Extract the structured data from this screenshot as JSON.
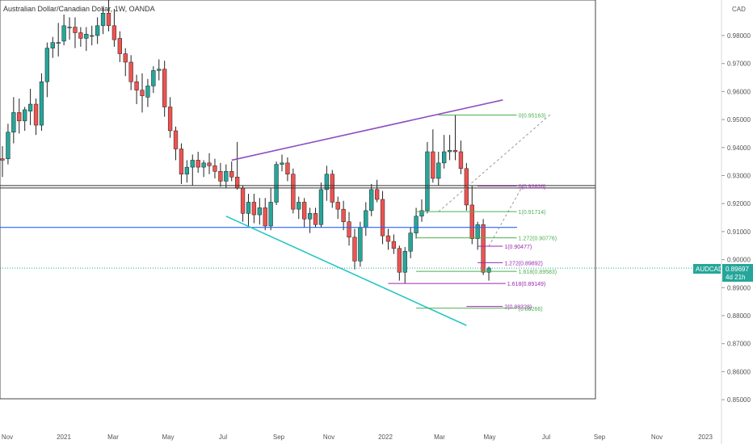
{
  "header": {
    "symbol_title": "Australian Dollar/Canadian Dollar, 1W, OANDA"
  },
  "price_axis": {
    "currency": "CAD",
    "ticks": [
      "0.98000",
      "0.97000",
      "0.96000",
      "0.95000",
      "0.94000",
      "0.93000",
      "0.92000",
      "0.91000",
      "0.90000",
      "0.89000",
      "0.88000",
      "0.87000",
      "0.86000",
      "0.85000"
    ]
  },
  "time_axis": {
    "labels": [
      "Nov",
      "2021",
      "Mar",
      "May",
      "Jul",
      "Sep",
      "Nov",
      "2022",
      "Mar",
      "May",
      "Jul",
      "Sep",
      "Nov",
      "2023"
    ]
  },
  "last_price": {
    "symbol": "AUDCAD",
    "value": "0.89697",
    "countdown": "4d 21h"
  },
  "colors": {
    "up": "#26a69a",
    "down": "#ef5350",
    "trend_upper": "#8e4fc1",
    "trend_lower": "#26c6c6",
    "horizontal": "#2962ff",
    "fib_green": "#4caf50",
    "fib_purple": "#9c27b0",
    "label_bg": "#26a69a"
  },
  "fib_labels": {
    "f1": "0(0.95163)",
    "f2": "0(0.92626)",
    "f3": "1(0.91714)",
    "f4": "1.272(0.90776)",
    "f5": "1(0.90477)",
    "f6": "1.272(0.89892)",
    "f7": "1.618(0.89583)",
    "f8": "1.618(0.89149)",
    "f9": "2(0.88328)",
    "f10": "(0.88266)"
  },
  "chart_data": {
    "type": "candlestick",
    "symbol": "AUDCAD",
    "timeframe": "1W",
    "source": "OANDA",
    "ylim": [
      0.845,
      0.994
    ],
    "candles": [
      {
        "o": 0.936,
        "h": 0.9405,
        "l": 0.9295,
        "c": 0.9355
      },
      {
        "o": 0.936,
        "h": 0.9485,
        "l": 0.934,
        "c": 0.9455
      },
      {
        "o": 0.9455,
        "h": 0.958,
        "l": 0.9415,
        "c": 0.9525
      },
      {
        "o": 0.9525,
        "h": 0.9575,
        "l": 0.945,
        "c": 0.9495
      },
      {
        "o": 0.9495,
        "h": 0.9545,
        "l": 0.946,
        "c": 0.9535
      },
      {
        "o": 0.953,
        "h": 0.961,
        "l": 0.948,
        "c": 0.9555
      },
      {
        "o": 0.9555,
        "h": 0.9575,
        "l": 0.9445,
        "c": 0.948
      },
      {
        "o": 0.948,
        "h": 0.9665,
        "l": 0.946,
        "c": 0.9635
      },
      {
        "o": 0.9635,
        "h": 0.9775,
        "l": 0.958,
        "c": 0.9755
      },
      {
        "o": 0.9755,
        "h": 0.9795,
        "l": 0.972,
        "c": 0.9775
      },
      {
        "o": 0.9775,
        "h": 0.9845,
        "l": 0.9725,
        "c": 0.9775
      },
      {
        "o": 0.978,
        "h": 0.9875,
        "l": 0.9765,
        "c": 0.9835
      },
      {
        "o": 0.983,
        "h": 0.9865,
        "l": 0.9785,
        "c": 0.983
      },
      {
        "o": 0.983,
        "h": 0.9865,
        "l": 0.9755,
        "c": 0.981
      },
      {
        "o": 0.981,
        "h": 0.983,
        "l": 0.976,
        "c": 0.979
      },
      {
        "o": 0.979,
        "h": 0.983,
        "l": 0.9745,
        "c": 0.9805
      },
      {
        "o": 0.98,
        "h": 0.9835,
        "l": 0.9765,
        "c": 0.98
      },
      {
        "o": 0.98,
        "h": 0.9865,
        "l": 0.977,
        "c": 0.9835
      },
      {
        "o": 0.9835,
        "h": 0.99,
        "l": 0.9805,
        "c": 0.988
      },
      {
        "o": 0.988,
        "h": 0.994,
        "l": 0.9815,
        "c": 0.9835
      },
      {
        "o": 0.9835,
        "h": 0.9895,
        "l": 0.976,
        "c": 0.9785
      },
      {
        "o": 0.979,
        "h": 0.9815,
        "l": 0.9705,
        "c": 0.9735
      },
      {
        "o": 0.9735,
        "h": 0.9755,
        "l": 0.9655,
        "c": 0.9705
      },
      {
        "o": 0.9705,
        "h": 0.973,
        "l": 0.9605,
        "c": 0.9635
      },
      {
        "o": 0.9635,
        "h": 0.966,
        "l": 0.9555,
        "c": 0.9605
      },
      {
        "o": 0.9605,
        "h": 0.9665,
        "l": 0.9525,
        "c": 0.9585
      },
      {
        "o": 0.958,
        "h": 0.9645,
        "l": 0.9545,
        "c": 0.962
      },
      {
        "o": 0.962,
        "h": 0.969,
        "l": 0.9595,
        "c": 0.9675
      },
      {
        "o": 0.9675,
        "h": 0.9715,
        "l": 0.964,
        "c": 0.968
      },
      {
        "o": 0.968,
        "h": 0.971,
        "l": 0.951,
        "c": 0.9545
      },
      {
        "o": 0.9545,
        "h": 0.958,
        "l": 0.9435,
        "c": 0.946
      },
      {
        "o": 0.946,
        "h": 0.9475,
        "l": 0.9355,
        "c": 0.9395
      },
      {
        "o": 0.9395,
        "h": 0.9415,
        "l": 0.927,
        "c": 0.9305
      },
      {
        "o": 0.9305,
        "h": 0.9355,
        "l": 0.9275,
        "c": 0.933
      },
      {
        "o": 0.933,
        "h": 0.9375,
        "l": 0.9265,
        "c": 0.9355
      },
      {
        "o": 0.9355,
        "h": 0.9385,
        "l": 0.931,
        "c": 0.933
      },
      {
        "o": 0.933,
        "h": 0.9355,
        "l": 0.9295,
        "c": 0.9345
      },
      {
        "o": 0.9345,
        "h": 0.938,
        "l": 0.9305,
        "c": 0.9335
      },
      {
        "o": 0.9335,
        "h": 0.936,
        "l": 0.929,
        "c": 0.9315
      },
      {
        "o": 0.9315,
        "h": 0.9345,
        "l": 0.926,
        "c": 0.928
      },
      {
        "o": 0.928,
        "h": 0.934,
        "l": 0.9255,
        "c": 0.9315
      },
      {
        "o": 0.9315,
        "h": 0.935,
        "l": 0.928,
        "c": 0.9295
      },
      {
        "o": 0.9295,
        "h": 0.942,
        "l": 0.925,
        "c": 0.9255
      },
      {
        "o": 0.9255,
        "h": 0.9265,
        "l": 0.9135,
        "c": 0.9165
      },
      {
        "o": 0.9165,
        "h": 0.9235,
        "l": 0.9115,
        "c": 0.9205
      },
      {
        "o": 0.9205,
        "h": 0.9235,
        "l": 0.913,
        "c": 0.916
      },
      {
        "o": 0.916,
        "h": 0.922,
        "l": 0.9125,
        "c": 0.9185
      },
      {
        "o": 0.9185,
        "h": 0.922,
        "l": 0.9105,
        "c": 0.912
      },
      {
        "o": 0.912,
        "h": 0.9255,
        "l": 0.9105,
        "c": 0.9205
      },
      {
        "o": 0.9205,
        "h": 0.935,
        "l": 0.9195,
        "c": 0.934
      },
      {
        "o": 0.934,
        "h": 0.9375,
        "l": 0.9315,
        "c": 0.9345
      },
      {
        "o": 0.9345,
        "h": 0.9365,
        "l": 0.928,
        "c": 0.9305
      },
      {
        "o": 0.9305,
        "h": 0.9325,
        "l": 0.9165,
        "c": 0.918
      },
      {
        "o": 0.918,
        "h": 0.9225,
        "l": 0.9145,
        "c": 0.9205
      },
      {
        "o": 0.9205,
        "h": 0.922,
        "l": 0.9115,
        "c": 0.9145
      },
      {
        "o": 0.9145,
        "h": 0.9185,
        "l": 0.9095,
        "c": 0.9165
      },
      {
        "o": 0.9165,
        "h": 0.9185,
        "l": 0.9115,
        "c": 0.9125
      },
      {
        "o": 0.9125,
        "h": 0.9275,
        "l": 0.9115,
        "c": 0.925
      },
      {
        "o": 0.925,
        "h": 0.9335,
        "l": 0.921,
        "c": 0.9305
      },
      {
        "o": 0.9305,
        "h": 0.932,
        "l": 0.9185,
        "c": 0.9205
      },
      {
        "o": 0.9205,
        "h": 0.9225,
        "l": 0.9145,
        "c": 0.918
      },
      {
        "o": 0.918,
        "h": 0.921,
        "l": 0.9105,
        "c": 0.9135
      },
      {
        "o": 0.9135,
        "h": 0.917,
        "l": 0.905,
        "c": 0.908
      },
      {
        "o": 0.908,
        "h": 0.911,
        "l": 0.8965,
        "c": 0.8995
      },
      {
        "o": 0.8995,
        "h": 0.9135,
        "l": 0.8975,
        "c": 0.9115
      },
      {
        "o": 0.9115,
        "h": 0.9205,
        "l": 0.9085,
        "c": 0.9175
      },
      {
        "o": 0.9175,
        "h": 0.927,
        "l": 0.9155,
        "c": 0.925
      },
      {
        "o": 0.925,
        "h": 0.9285,
        "l": 0.9205,
        "c": 0.9215
      },
      {
        "o": 0.9215,
        "h": 0.9245,
        "l": 0.9055,
        "c": 0.9085
      },
      {
        "o": 0.9085,
        "h": 0.911,
        "l": 0.9035,
        "c": 0.9065
      },
      {
        "o": 0.9065,
        "h": 0.909,
        "l": 0.902,
        "c": 0.904
      },
      {
        "o": 0.904,
        "h": 0.905,
        "l": 0.8925,
        "c": 0.8955
      },
      {
        "o": 0.8955,
        "h": 0.9045,
        "l": 0.8915,
        "c": 0.903
      },
      {
        "o": 0.903,
        "h": 0.9115,
        "l": 0.9005,
        "c": 0.9095
      },
      {
        "o": 0.9095,
        "h": 0.9185,
        "l": 0.9075,
        "c": 0.9155
      },
      {
        "o": 0.9155,
        "h": 0.9215,
        "l": 0.9135,
        "c": 0.9175
      },
      {
        "o": 0.9175,
        "h": 0.942,
        "l": 0.9165,
        "c": 0.9385
      },
      {
        "o": 0.9385,
        "h": 0.9465,
        "l": 0.9275,
        "c": 0.929
      },
      {
        "o": 0.929,
        "h": 0.9385,
        "l": 0.9265,
        "c": 0.9345
      },
      {
        "o": 0.9345,
        "h": 0.9445,
        "l": 0.9325,
        "c": 0.9385
      },
      {
        "o": 0.9385,
        "h": 0.9445,
        "l": 0.9355,
        "c": 0.939
      },
      {
        "o": 0.939,
        "h": 0.9516,
        "l": 0.9355,
        "c": 0.9385
      },
      {
        "o": 0.9385,
        "h": 0.9425,
        "l": 0.9305,
        "c": 0.9325
      },
      {
        "o": 0.9325,
        "h": 0.9345,
        "l": 0.9175,
        "c": 0.9195
      },
      {
        "o": 0.9195,
        "h": 0.9263,
        "l": 0.9055,
        "c": 0.9075
      },
      {
        "o": 0.9075,
        "h": 0.9135,
        "l": 0.9035,
        "c": 0.9125
      },
      {
        "o": 0.9125,
        "h": 0.9145,
        "l": 0.8945,
        "c": 0.8955
      },
      {
        "o": 0.8955,
        "h": 0.8975,
        "l": 0.8925,
        "c": 0.897
      }
    ],
    "trendlines": [
      {
        "name": "upper-resistance",
        "color": "#8e4fc1",
        "from": {
          "x": 41,
          "y": 0.9355
        },
        "to": {
          "x": 89.5,
          "y": 0.957
        }
      },
      {
        "name": "lower-support",
        "color": "#26c6c6",
        "from": {
          "x": 40,
          "y": 0.9155
        },
        "to": {
          "x": 83,
          "y": 0.8765
        }
      }
    ],
    "horizontal_lines": [
      {
        "name": "key-level",
        "y": 0.926,
        "color": "#333333"
      },
      {
        "name": "blue-level",
        "y": 0.9115,
        "color": "#2962ff"
      }
    ],
    "fib_levels": [
      {
        "label_key": "f1",
        "value": 0.95163,
        "color": "#4caf50",
        "x0": 78,
        "x1": 92
      },
      {
        "label_key": "f2",
        "value": 0.92626,
        "color": "#9c27b0",
        "x0": 85,
        "x1": 92
      },
      {
        "label_key": "f3",
        "value": 0.91714,
        "color": "#4caf50",
        "x0": 74,
        "x1": 92
      },
      {
        "label_key": "f4",
        "value": 0.90776,
        "color": "#4caf50",
        "x0": 74,
        "x1": 92
      },
      {
        "label_key": "f5",
        "value": 0.90477,
        "color": "#9c27b0",
        "x0": 85,
        "x1": 89.5
      },
      {
        "label_key": "f6",
        "value": 0.89892,
        "color": "#9c27b0",
        "x0": 85,
        "x1": 89.5
      },
      {
        "label_key": "f7",
        "value": 0.89583,
        "color": "#4caf50",
        "x0": 74,
        "x1": 92
      },
      {
        "label_key": "f8",
        "value": 0.89149,
        "color": "#9c27b0",
        "x0": 69,
        "x1": 90
      },
      {
        "label_key": "f9",
        "value": 0.88328,
        "color": "#9c27b0",
        "x0": 83,
        "x1": 89.5
      },
      {
        "label_key": "f10",
        "value": 0.88266,
        "color": "#4caf50",
        "x0": 74,
        "x1": 92
      }
    ],
    "last_price_line": 0.89697
  }
}
